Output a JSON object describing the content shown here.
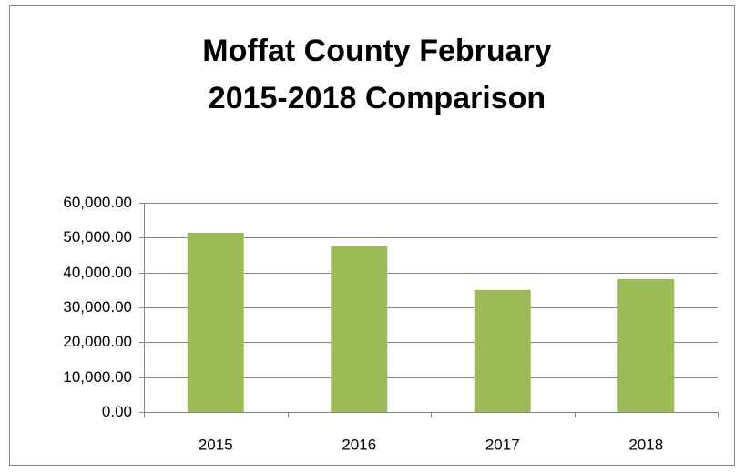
{
  "chart_data": {
    "type": "bar",
    "title": [
      "Moffat County February",
      "2015-2018 Comparison"
    ],
    "categories": [
      "2015",
      "2016",
      "2017",
      "2018"
    ],
    "values": [
      51400,
      47500,
      35000,
      38100
    ],
    "color": "#9bbb59",
    "ylim": [
      0,
      60000
    ],
    "yticks": [
      {
        "value": 0,
        "label": "0.00"
      },
      {
        "value": 10000,
        "label": "10,000.00"
      },
      {
        "value": 20000,
        "label": "20,000.00"
      },
      {
        "value": 30000,
        "label": "30,000.00"
      },
      {
        "value": 40000,
        "label": "40,000.00"
      },
      {
        "value": 50000,
        "label": "50,000.00"
      },
      {
        "value": 60000,
        "label": "60,000.00"
      }
    ],
    "grid": true
  }
}
